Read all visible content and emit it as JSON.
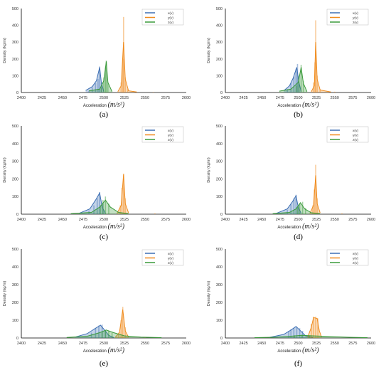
{
  "figure": {
    "panel_labels": [
      "(a)",
      "(b)",
      "(c)",
      "(d)",
      "(e)",
      "(f)"
    ]
  },
  "colors": {
    "x": "#3d6fb4",
    "y": "#f08c1e",
    "z": "#3a9a3a",
    "axis": "#000000",
    "tick_text": "#333333"
  },
  "chart_data": [
    {
      "type": "area",
      "panel": "(a)",
      "xlabel": "Acceleration",
      "xlabel_unit": "(m/s²)",
      "ylabel": "Density (kg/m)",
      "xlim": [
        2400,
        2600
      ],
      "ylim": [
        0,
        500
      ],
      "xticks": [
        2400,
        2425,
        2450,
        2475,
        2500,
        2525,
        2550,
        2575,
        2600
      ],
      "yticks": [
        0,
        100,
        200,
        300,
        400,
        500
      ],
      "legend": "top-right",
      "series": [
        {
          "name": "x(v)",
          "kde": [
            [
              2478,
              12
            ],
            [
              2486,
              35
            ],
            [
              2491,
              70
            ],
            [
              2495,
              150
            ],
            [
              2497,
              60
            ],
            [
              2500,
              5
            ]
          ],
          "bins": [
            [
              2482,
              10
            ],
            [
              2486,
              30
            ],
            [
              2490,
              55
            ],
            [
              2493,
              80
            ],
            [
              2495,
              155
            ],
            [
              2497,
              60
            ]
          ]
        },
        {
          "name": "y(v)",
          "kde": [
            [
              2517,
              5
            ],
            [
              2521,
              40
            ],
            [
              2524,
              300
            ],
            [
              2526,
              80
            ],
            [
              2530,
              10
            ],
            [
              2540,
              3
            ]
          ],
          "bins": [
            [
              2521,
              60
            ],
            [
              2523,
              200
            ],
            [
              2524,
              450
            ],
            [
              2526,
              90
            ],
            [
              2529,
              20
            ],
            [
              2560,
              3
            ]
          ]
        },
        {
          "name": "z(v)",
          "kde": [
            [
              2482,
              10
            ],
            [
              2495,
              20
            ],
            [
              2500,
              70
            ],
            [
              2503,
              185
            ],
            [
              2505,
              60
            ],
            [
              2510,
              5
            ]
          ],
          "bins": [
            [
              2497,
              30
            ],
            [
              2500,
              90
            ],
            [
              2502,
              150
            ],
            [
              2503,
              190
            ],
            [
              2505,
              60
            ]
          ]
        }
      ]
    },
    {
      "type": "area",
      "panel": "(b)",
      "xlabel": "Acceleration",
      "xlabel_unit": "(m/s²)",
      "ylabel": "Density (kg/m)",
      "xlim": [
        2400,
        2600
      ],
      "ylim": [
        0,
        500
      ],
      "xticks": [
        2400,
        2425,
        2450,
        2475,
        2500,
        2525,
        2550,
        2575,
        2600
      ],
      "yticks": [
        0,
        100,
        200,
        300,
        400,
        500
      ],
      "legend": "top-right",
      "series": [
        {
          "name": "x(v)",
          "kde": [
            [
              2480,
              10
            ],
            [
              2488,
              40
            ],
            [
              2493,
              85
            ],
            [
              2498,
              150
            ],
            [
              2501,
              60
            ],
            [
              2504,
              5
            ]
          ],
          "bins": [
            [
              2485,
              20
            ],
            [
              2490,
              55
            ],
            [
              2494,
              95
            ],
            [
              2497,
              140
            ],
            [
              2499,
              170
            ],
            [
              2501,
              60
            ]
          ]
        },
        {
          "name": "y(v)",
          "kde": [
            [
              2518,
              5
            ],
            [
              2522,
              40
            ],
            [
              2524,
              300
            ],
            [
              2526,
              80
            ],
            [
              2530,
              15
            ],
            [
              2545,
              3
            ]
          ],
          "bins": [
            [
              2521,
              60
            ],
            [
              2523,
              180
            ],
            [
              2524,
              430
            ],
            [
              2526,
              100
            ],
            [
              2530,
              20
            ],
            [
              2550,
              5
            ]
          ]
        },
        {
          "name": "z(v)",
          "kde": [
            [
              2474,
              8
            ],
            [
              2490,
              20
            ],
            [
              2500,
              60
            ],
            [
              2504,
              150
            ],
            [
              2507,
              55
            ],
            [
              2512,
              5
            ]
          ],
          "bins": [
            [
              2498,
              40
            ],
            [
              2501,
              100
            ],
            [
              2504,
              165
            ],
            [
              2507,
              70
            ]
          ]
        }
      ]
    },
    {
      "type": "area",
      "panel": "(c)",
      "xlabel": "Acceleration",
      "xlabel_unit": "(m/s²)",
      "ylabel": "Density (kg/m)",
      "xlim": [
        2400,
        2600
      ],
      "ylim": [
        0,
        500
      ],
      "xticks": [
        2400,
        2425,
        2450,
        2475,
        2500,
        2525,
        2550,
        2575,
        2600
      ],
      "yticks": [
        0,
        100,
        200,
        300,
        400,
        500
      ],
      "legend": "top-right",
      "series": [
        {
          "name": "x(v)",
          "kde": [
            [
              2470,
              5
            ],
            [
              2483,
              30
            ],
            [
              2490,
              80
            ],
            [
              2495,
              120
            ],
            [
              2498,
              40
            ],
            [
              2502,
              5
            ]
          ],
          "bins": [
            [
              2482,
              20
            ],
            [
              2488,
              50
            ],
            [
              2492,
              90
            ],
            [
              2495,
              125
            ],
            [
              2499,
              60
            ]
          ]
        },
        {
          "name": "y(v)",
          "kde": [
            [
              2516,
              5
            ],
            [
              2521,
              50
            ],
            [
              2524,
              225
            ],
            [
              2526,
              60
            ],
            [
              2530,
              8
            ]
          ],
          "bins": [
            [
              2520,
              50
            ],
            [
              2522,
              150
            ],
            [
              2524,
              230
            ],
            [
              2526,
              90
            ],
            [
              2562,
              5
            ]
          ]
        },
        {
          "name": "z(v)",
          "kde": [
            [
              2460,
              3
            ],
            [
              2485,
              10
            ],
            [
              2495,
              40
            ],
            [
              2502,
              80
            ],
            [
              2508,
              40
            ],
            [
              2518,
              10
            ],
            [
              2530,
              3
            ]
          ],
          "bins": [
            [
              2496,
              50
            ],
            [
              2499,
              80
            ],
            [
              2502,
              100
            ],
            [
              2506,
              60
            ]
          ]
        }
      ]
    },
    {
      "type": "area",
      "panel": "(d)",
      "xlabel": "Acceleration",
      "xlabel_unit": "(m/s²)",
      "ylabel": "Density (kg/m)",
      "xlim": [
        2400,
        2600
      ],
      "ylim": [
        0,
        500
      ],
      "xticks": [
        2400,
        2425,
        2450,
        2475,
        2500,
        2525,
        2550,
        2575,
        2600
      ],
      "yticks": [
        0,
        100,
        200,
        300,
        400,
        500
      ],
      "legend": "top-right",
      "series": [
        {
          "name": "x(v)",
          "kde": [
            [
              2470,
              5
            ],
            [
              2485,
              30
            ],
            [
              2492,
              70
            ],
            [
              2497,
              105
            ],
            [
              2500,
              40
            ],
            [
              2504,
              5
            ]
          ],
          "bins": [
            [
              2485,
              25
            ],
            [
              2490,
              55
            ],
            [
              2494,
              90
            ],
            [
              2497,
              110
            ],
            [
              2500,
              50
            ]
          ]
        },
        {
          "name": "y(v)",
          "kde": [
            [
              2516,
              5
            ],
            [
              2521,
              50
            ],
            [
              2524,
              220
            ],
            [
              2526,
              60
            ],
            [
              2530,
              8
            ]
          ],
          "bins": [
            [
              2520,
              50
            ],
            [
              2522,
              140
            ],
            [
              2524,
              280
            ],
            [
              2526,
              90
            ],
            [
              2560,
              5
            ]
          ]
        },
        {
          "name": "z(v)",
          "kde": [
            [
              2465,
              3
            ],
            [
              2488,
              10
            ],
            [
              2497,
              30
            ],
            [
              2503,
              65
            ],
            [
              2509,
              30
            ],
            [
              2518,
              8
            ],
            [
              2530,
              3
            ]
          ],
          "bins": [
            [
              2499,
              40
            ],
            [
              2502,
              60
            ],
            [
              2506,
              70
            ],
            [
              2510,
              35
            ]
          ]
        }
      ]
    },
    {
      "type": "area",
      "panel": "(e)",
      "xlabel": "Acceleration",
      "xlabel_unit": "(m/s²)",
      "ylabel": "Density (kg/m)",
      "xlim": [
        2400,
        2600
      ],
      "ylim": [
        0,
        500
      ],
      "xticks": [
        2400,
        2425,
        2450,
        2475,
        2500,
        2525,
        2550,
        2575,
        2600
      ],
      "yticks": [
        0,
        100,
        200,
        300,
        400,
        500
      ],
      "legend": "top-right",
      "series": [
        {
          "name": "x(v)",
          "kde": [
            [
              2465,
              5
            ],
            [
              2480,
              25
            ],
            [
              2490,
              55
            ],
            [
              2496,
              72
            ],
            [
              2500,
              50
            ],
            [
              2506,
              15
            ],
            [
              2512,
              3
            ]
          ],
          "bins": [
            [
              2485,
              30
            ],
            [
              2490,
              55
            ],
            [
              2494,
              70
            ],
            [
              2498,
              75
            ],
            [
              2502,
              40
            ]
          ]
        },
        {
          "name": "y(v)",
          "kde": [
            [
              2514,
              5
            ],
            [
              2519,
              30
            ],
            [
              2523,
              160
            ],
            [
              2526,
              40
            ],
            [
              2530,
              5
            ]
          ],
          "bins": [
            [
              2518,
              30
            ],
            [
              2521,
              100
            ],
            [
              2523,
              175
            ],
            [
              2526,
              60
            ],
            [
              2550,
              5
            ]
          ]
        },
        {
          "name": "z(v)",
          "kde": [
            [
              2455,
              3
            ],
            [
              2480,
              10
            ],
            [
              2495,
              30
            ],
            [
              2503,
              45
            ],
            [
              2512,
              30
            ],
            [
              2525,
              12
            ],
            [
              2545,
              5
            ],
            [
              2570,
              2
            ]
          ],
          "bins": [
            [
              2498,
              35
            ],
            [
              2502,
              45
            ],
            [
              2506,
              40
            ],
            [
              2510,
              30
            ]
          ]
        }
      ]
    },
    {
      "type": "area",
      "panel": "(f)",
      "xlabel": "Acceleration",
      "xlabel_unit": "(m/s²)",
      "ylabel": "Density (kg/m)",
      "xlim": [
        2400,
        2600
      ],
      "ylim": [
        0,
        500
      ],
      "xticks": [
        2400,
        2425,
        2450,
        2475,
        2500,
        2525,
        2550,
        2575,
        2600
      ],
      "yticks": [
        0,
        100,
        200,
        300,
        400,
        500
      ],
      "legend": "top-right",
      "series": [
        {
          "name": "x(v)",
          "kde": [
            [
              2460,
              3
            ],
            [
              2480,
              20
            ],
            [
              2490,
              45
            ],
            [
              2497,
              65
            ],
            [
              2502,
              45
            ],
            [
              2510,
              12
            ],
            [
              2520,
              3
            ]
          ],
          "bins": [
            [
              2487,
              40
            ],
            [
              2490,
              50
            ],
            [
              2494,
              55
            ],
            [
              2498,
              60
            ],
            [
              2502,
              55
            ],
            [
              2506,
              40
            ]
          ]
        },
        {
          "name": "y(v)",
          "kde": [
            [
              2513,
              5
            ],
            [
              2518,
              60
            ],
            [
              2521,
              115
            ],
            [
              2526,
              110
            ],
            [
              2529,
              40
            ],
            [
              2532,
              5
            ]
          ],
          "bins": [
            [
              2518,
              80
            ],
            [
              2521,
              120
            ],
            [
              2524,
              120
            ],
            [
              2527,
              110
            ]
          ]
        },
        {
          "name": "z(v)",
          "kde": [
            [
              2440,
              2
            ],
            [
              2470,
              5
            ],
            [
              2490,
              10
            ],
            [
              2505,
              15
            ],
            [
              2520,
              12
            ],
            [
              2545,
              8
            ],
            [
              2570,
              4
            ],
            [
              2595,
              2
            ]
          ],
          "bins": [
            [
              2495,
              15
            ],
            [
              2505,
              18
            ],
            [
              2515,
              12
            ]
          ]
        }
      ]
    }
  ]
}
